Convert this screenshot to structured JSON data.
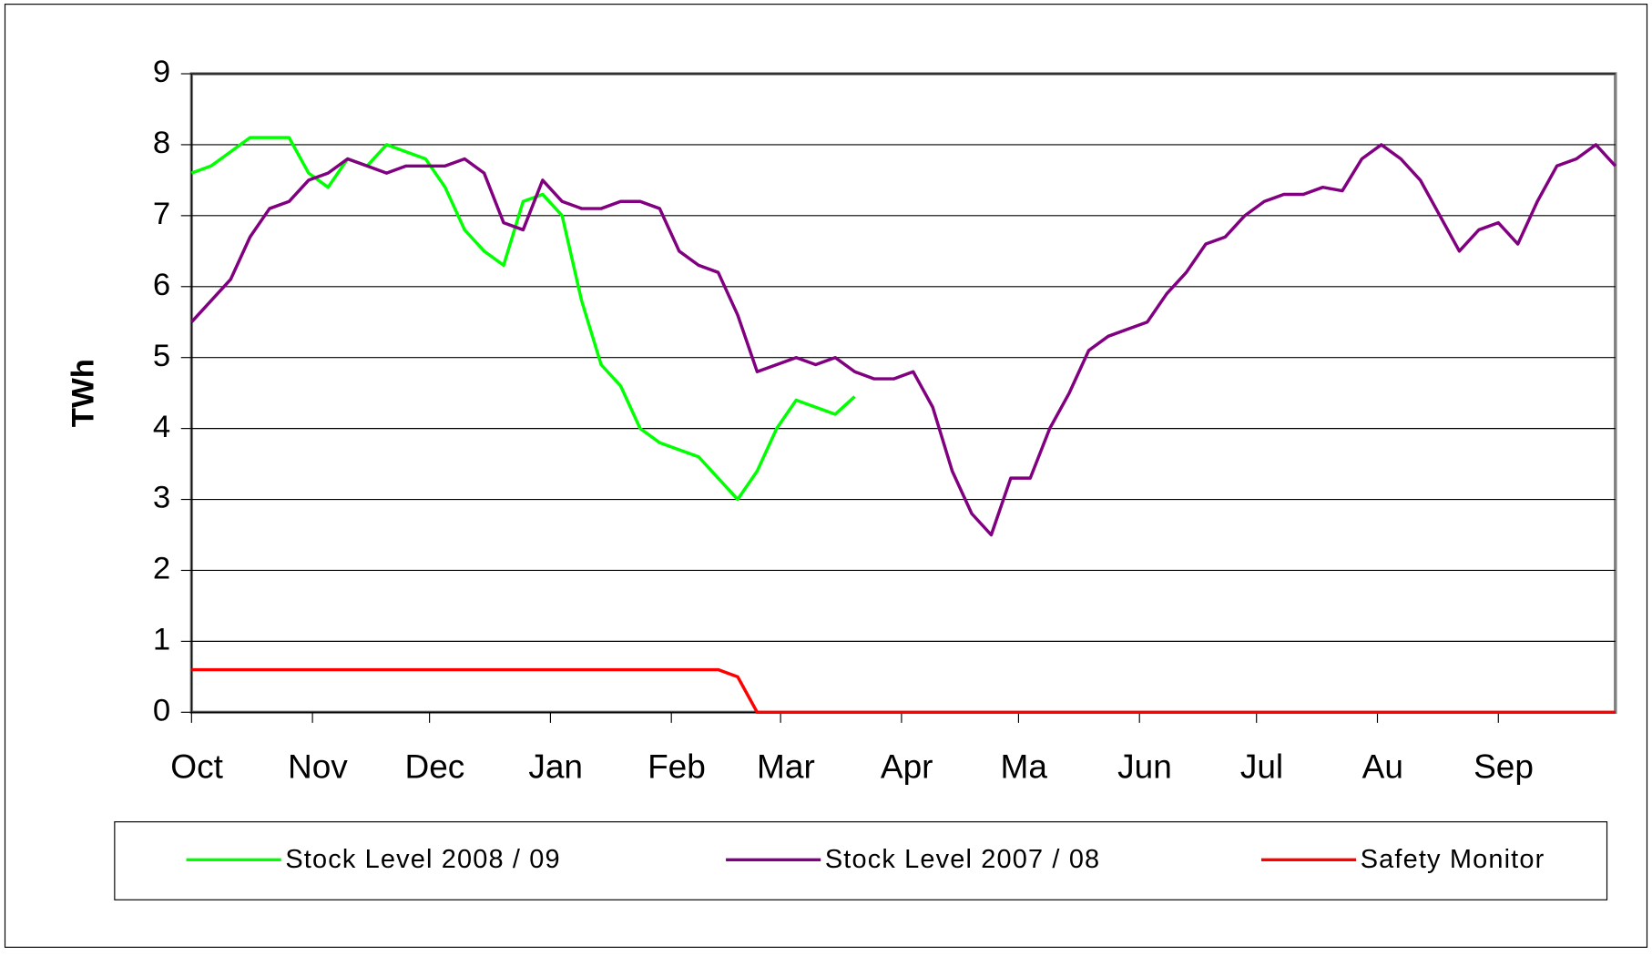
{
  "chart_data": {
    "type": "line",
    "ylabel": "TWh",
    "x": [
      0,
      5,
      10,
      15,
      20,
      25,
      30,
      35,
      40,
      45,
      50,
      55,
      60,
      65,
      70,
      75,
      80,
      85,
      90,
      95,
      100,
      105,
      110,
      115,
      120,
      125,
      130,
      135,
      140,
      145,
      150,
      155,
      160,
      165,
      170,
      175,
      180,
      185,
      190,
      195,
      200,
      205,
      210,
      215,
      220,
      225,
      230,
      235,
      240,
      245,
      250,
      255,
      260,
      265,
      270,
      275,
      280,
      285,
      290,
      295,
      300,
      305,
      310,
      315,
      320,
      325,
      330,
      335,
      340,
      345,
      350,
      355,
      360,
      365
    ],
    "xlim": [
      0,
      365
    ],
    "xticks": [
      {
        "value": 0,
        "label": "Oct"
      },
      {
        "value": 31,
        "label": "Nov"
      },
      {
        "value": 61,
        "label": "Dec"
      },
      {
        "value": 92,
        "label": "Jan"
      },
      {
        "value": 123,
        "label": "Feb"
      },
      {
        "value": 151,
        "label": "Mar"
      },
      {
        "value": 182,
        "label": "Apr"
      },
      {
        "value": 212,
        "label": "Ma"
      },
      {
        "value": 243,
        "label": "Jun"
      },
      {
        "value": 273,
        "label": "Jul"
      },
      {
        "value": 304,
        "label": "Au"
      },
      {
        "value": 335,
        "label": "Sep"
      }
    ],
    "ylim": [
      0,
      9
    ],
    "yticks": [
      0,
      1,
      2,
      3,
      4,
      5,
      6,
      7,
      8,
      9
    ],
    "grid": true,
    "legend": "bottom",
    "series": [
      {
        "name": "Stock Level 2008 / 09",
        "color": "#00ff00",
        "values": [
          7.6,
          7.7,
          7.9,
          8.1,
          8.1,
          8.1,
          7.6,
          7.4,
          7.8,
          7.7,
          8.0,
          7.9,
          7.8,
          7.4,
          6.8,
          6.5,
          6.3,
          7.2,
          7.3,
          7.0,
          5.8,
          4.9,
          4.6,
          4.0,
          3.8,
          3.7,
          3.6,
          3.3,
          3.0,
          3.4,
          4.0,
          4.4,
          4.3,
          4.2,
          4.45,
          null,
          null,
          null,
          null,
          null,
          null,
          null,
          null,
          null,
          null,
          null,
          null,
          null,
          null,
          null,
          null,
          null,
          null,
          null,
          null,
          null,
          null,
          null,
          null,
          null,
          null,
          null,
          null,
          null,
          null,
          null,
          null,
          null,
          null,
          null,
          null,
          null,
          null,
          null
        ]
      },
      {
        "name": "Stock Level 2007 / 08",
        "color": "#800080",
        "values": [
          5.5,
          5.8,
          6.1,
          6.7,
          7.1,
          7.2,
          7.5,
          7.6,
          7.8,
          7.7,
          7.6,
          7.7,
          7.7,
          7.7,
          7.8,
          7.6,
          6.9,
          6.8,
          7.5,
          7.2,
          7.1,
          7.1,
          7.2,
          7.2,
          7.1,
          6.5,
          6.3,
          6.2,
          5.6,
          4.8,
          4.9,
          5.0,
          4.9,
          5.0,
          4.8,
          4.7,
          4.7,
          4.8,
          4.3,
          3.4,
          2.8,
          2.5,
          3.3,
          3.3,
          4.0,
          4.5,
          5.1,
          5.3,
          5.4,
          5.5,
          5.9,
          6.2,
          6.6,
          6.7,
          7.0,
          7.2,
          7.3,
          7.3,
          7.4,
          7.35,
          7.8,
          8.0,
          7.8,
          7.5,
          7.0,
          6.5,
          6.8,
          6.9,
          6.6,
          7.2,
          7.7,
          7.8,
          8.0,
          7.7
        ]
      },
      {
        "name": "Safety Monitor",
        "color": "#ff0000",
        "values": [
          0.6,
          0.6,
          0.6,
          0.6,
          0.6,
          0.6,
          0.6,
          0.6,
          0.6,
          0.6,
          0.6,
          0.6,
          0.6,
          0.6,
          0.6,
          0.6,
          0.6,
          0.6,
          0.6,
          0.6,
          0.6,
          0.6,
          0.6,
          0.6,
          0.6,
          0.6,
          0.6,
          0.6,
          0.5,
          0,
          0,
          0,
          0,
          0,
          0,
          0,
          0,
          0,
          0,
          0,
          0,
          0,
          0,
          0,
          0,
          0,
          0,
          0,
          0,
          0,
          0,
          0,
          0,
          0,
          0,
          0,
          0,
          0,
          0,
          0,
          0,
          0,
          0,
          0,
          0,
          0,
          0,
          0,
          0,
          0,
          0,
          0,
          0,
          0
        ]
      }
    ]
  }
}
